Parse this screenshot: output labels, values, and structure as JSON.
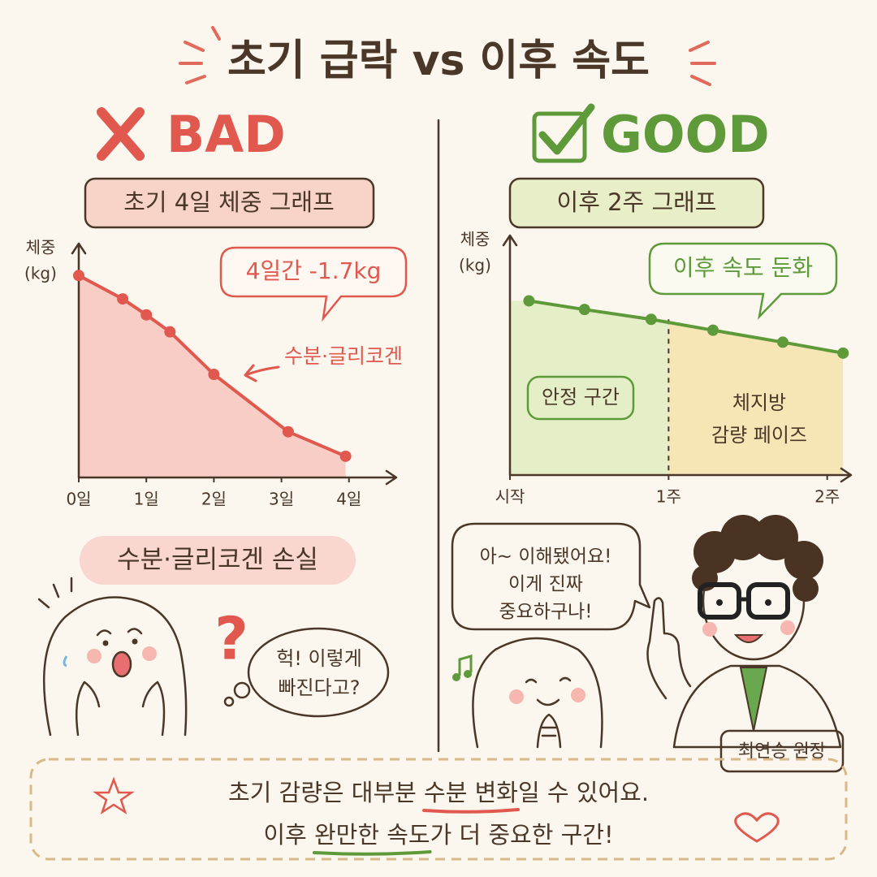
{
  "title": "초기 급락 vs 이후 속도",
  "chart_data": [
    {
      "type": "line",
      "verdict": "BAD",
      "verdict_color": "#e0584e",
      "title": "초기 4일 체중 그래프",
      "y_label": [
        "체중",
        "(kg)"
      ],
      "x": [
        0,
        0.65,
        1,
        1.35,
        2,
        3.1,
        3.95
      ],
      "values": [
        0,
        -0.22,
        -0.37,
        -0.53,
        -0.93,
        -1.47,
        -1.7
      ],
      "color": "#e0584e",
      "area_color": "#f8cdc6",
      "xlim": [
        0,
        4.7
      ],
      "ylim": [
        -1.9,
        0.3
      ],
      "xticks": [
        {
          "value": 0,
          "label": "0일"
        },
        {
          "value": 1,
          "label": "1일"
        },
        {
          "value": 2,
          "label": "2일"
        },
        {
          "value": 3,
          "label": "3일"
        },
        {
          "value": 4,
          "label": "4일"
        }
      ],
      "annotation": "4일간 -1.7kg",
      "note": "수분·글리코겐",
      "caption": "수분·글리코겐 손실",
      "symbol": "?",
      "reaction": [
        "헉! 이렇게",
        "빠진다고?"
      ]
    },
    {
      "type": "line",
      "verdict": "GOOD",
      "verdict_color": "#5e9a3a",
      "title": "이후 2주 그래프",
      "y_label": [
        "체중",
        "(kg)"
      ],
      "x": [
        0.12,
        0.47,
        0.89,
        1.28,
        1.72,
        2.1
      ],
      "values": [
        0,
        -0.08,
        -0.17,
        -0.27,
        -0.38,
        -0.48
      ],
      "color": "#5e9a3a",
      "xlim": [
        0,
        2.15
      ],
      "ylim": [
        -1.6,
        0.6
      ],
      "xticks": [
        {
          "value": 0,
          "label": "시작"
        },
        {
          "value": 1,
          "label": "1주"
        },
        {
          "value": 2,
          "label": "2주"
        }
      ],
      "annotation": "이후 속도 둔화",
      "regions": [
        {
          "label": [
            "안정 구간"
          ],
          "from": 0,
          "to": 1,
          "color": "#e4efc8"
        },
        {
          "label": [
            "체지방",
            "감량 페이즈"
          ],
          "from": 1,
          "to": 2.1,
          "color": "#f6e6b6"
        }
      ],
      "speech": [
        "아~ 이해됐어요!",
        "이게 진짜",
        "중요하구나!"
      ],
      "name_tag": "최연승 원장"
    }
  ],
  "footer": [
    {
      "before": "초기 감량은 대부분 ",
      "highlight": "수분 변화",
      "after": "일 수 있어요.",
      "color": "#e0584e"
    },
    {
      "before": "이후 ",
      "highlight": "완만한 속도",
      "after": "가 더 중요한 구간!",
      "color": "#5e9a3a"
    }
  ]
}
